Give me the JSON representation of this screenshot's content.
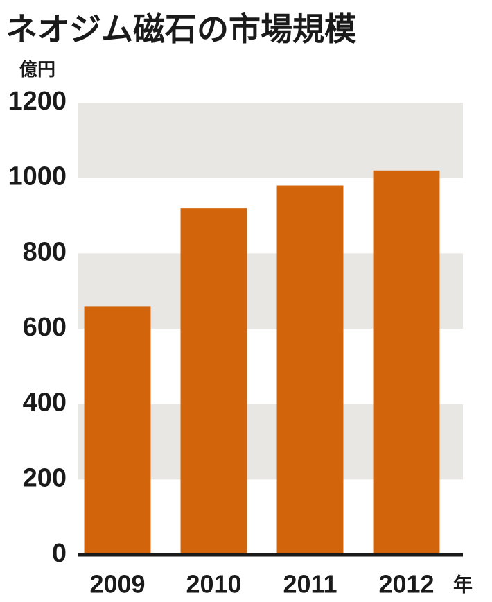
{
  "chart_data": {
    "type": "bar",
    "title": "ネオジム磁石の市場規模",
    "y_unit": "億円",
    "x_unit": "年",
    "categories": [
      "2009",
      "2010",
      "2011",
      "2012"
    ],
    "values": [
      660,
      920,
      980,
      1020
    ],
    "color": "#d2650c",
    "ylim": [
      0,
      1200
    ],
    "yticks": [
      0,
      200,
      400,
      600,
      800,
      1000,
      1200
    ],
    "grid": true,
    "band_color": "#e9e7e4"
  }
}
